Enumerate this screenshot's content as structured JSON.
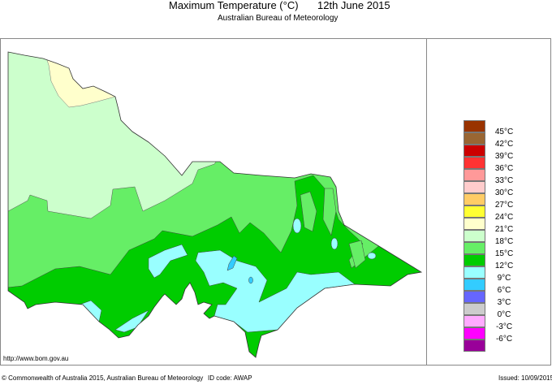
{
  "header": {
    "title": "Maximum Temperature (°C)",
    "date": "12th June 2015",
    "subtitle": "Australian Bureau of Meteorology"
  },
  "map": {
    "legend": {
      "colors": [
        "#993300",
        "#996633",
        "#cc0000",
        "#ff3333",
        "#ff9999",
        "#ffcccc",
        "#ffcc66",
        "#ffff33",
        "#ffffcc",
        "#ccffcc",
        "#66ee66",
        "#00cc00",
        "#99ffff",
        "#33ccff",
        "#6666ff",
        "#cccccc",
        "#ffaaff",
        "#ff00ff",
        "#990099"
      ],
      "labels": [
        "45°C",
        "42°C",
        "39°C",
        "36°C",
        "33°C",
        "30°C",
        "27°C",
        "24°C",
        "21°C",
        "18°C",
        "15°C",
        "12°C",
        "9°C",
        "6°C",
        "3°C",
        "0°C",
        "-3°C",
        "-6°C"
      ]
    }
  },
  "footer": {
    "url": "http://www.bom.gov.au",
    "copyright": "© Commonwealth of Australia 2015, Australian Bureau of Meteorology",
    "id_code": "ID code: AWAP",
    "issued": "Issued: 10/09/2015"
  }
}
